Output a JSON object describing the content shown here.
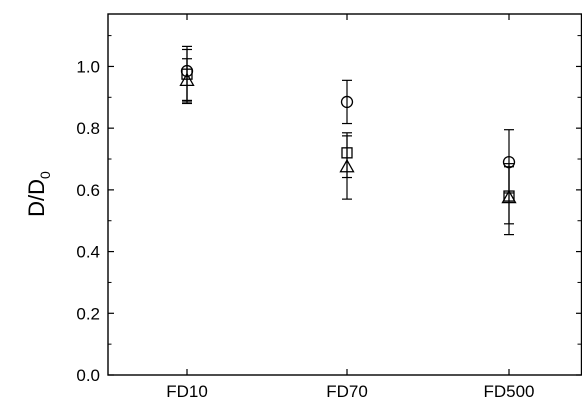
{
  "chart_data": {
    "type": "scatter",
    "title": "",
    "xlabel": "",
    "ylabel_main": "D/D",
    "ylabel_sub": "0",
    "categories": [
      "FD10",
      "FD70",
      "FD500"
    ],
    "ylim": [
      0,
      1.17
    ],
    "yticks": [
      0.0,
      0.2,
      0.4,
      0.6,
      0.8,
      1.0
    ],
    "ytick_labels": [
      "0.0",
      "0.2",
      "0.4",
      "0.6",
      "0.8",
      "1.0"
    ],
    "grid": false,
    "series": [
      {
        "marker": "circle",
        "values": [
          0.985,
          0.885,
          0.69
        ],
        "err_low": [
          0.89,
          0.815,
          0.59
        ],
        "err_high": [
          1.065,
          0.955,
          0.795
        ]
      },
      {
        "marker": "square",
        "values": [
          0.975,
          0.72,
          0.58
        ],
        "err_low": [
          0.885,
          0.64,
          0.49
        ],
        "err_high": [
          1.055,
          0.785,
          0.675
        ]
      },
      {
        "marker": "triangle",
        "values": [
          0.955,
          0.675,
          0.575
        ],
        "err_low": [
          0.88,
          0.57,
          0.455
        ],
        "err_high": [
          1.025,
          0.775,
          0.685
        ]
      }
    ],
    "colors": {
      "axis": "#000000",
      "marker_fill": "#ffffff",
      "marker_stroke": "#000000"
    }
  }
}
